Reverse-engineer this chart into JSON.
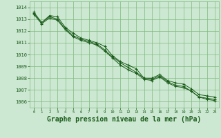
{
  "background_color": "#cde8d2",
  "grid_color": "#7dba7d",
  "line_color": "#1a5c1a",
  "xlabel": "Graphe pression niveau de la mer (hPa)",
  "xlabel_fontsize": 7,
  "ylim": [
    1005.5,
    1014.5
  ],
  "xlim": [
    -0.5,
    23.5
  ],
  "yticks": [
    1006,
    1007,
    1008,
    1009,
    1010,
    1011,
    1012,
    1013,
    1014
  ],
  "xticks": [
    0,
    1,
    2,
    3,
    4,
    5,
    6,
    7,
    8,
    9,
    10,
    11,
    12,
    13,
    14,
    15,
    16,
    17,
    18,
    19,
    20,
    21,
    22,
    23
  ],
  "series": [
    [
      1013.6,
      1012.7,
      1013.3,
      1013.2,
      1012.3,
      1011.8,
      1011.4,
      1011.2,
      1011.0,
      1010.7,
      1009.9,
      1009.4,
      1009.1,
      1008.8,
      1008.0,
      1008.0,
      1008.3,
      1007.8,
      1007.6,
      1007.5,
      1007.1,
      1006.6,
      1006.5,
      1006.4
    ],
    [
      1013.5,
      1012.7,
      1013.2,
      1013.0,
      1012.2,
      1011.6,
      1011.3,
      1011.1,
      1010.9,
      1010.4,
      1009.8,
      1009.3,
      1008.9,
      1008.5,
      1008.0,
      1007.9,
      1008.2,
      1007.7,
      1007.4,
      1007.3,
      1006.9,
      1006.4,
      1006.3,
      1006.2
    ],
    [
      1013.4,
      1012.6,
      1013.1,
      1012.9,
      1012.1,
      1011.5,
      1011.2,
      1011.0,
      1010.8,
      1010.3,
      1009.7,
      1009.1,
      1008.7,
      1008.4,
      1007.9,
      1007.8,
      1008.1,
      1007.6,
      1007.3,
      1007.2,
      1006.9,
      1006.4,
      1006.2,
      1006.1
    ]
  ],
  "fig_width": 3.2,
  "fig_height": 2.0,
  "dpi": 100
}
